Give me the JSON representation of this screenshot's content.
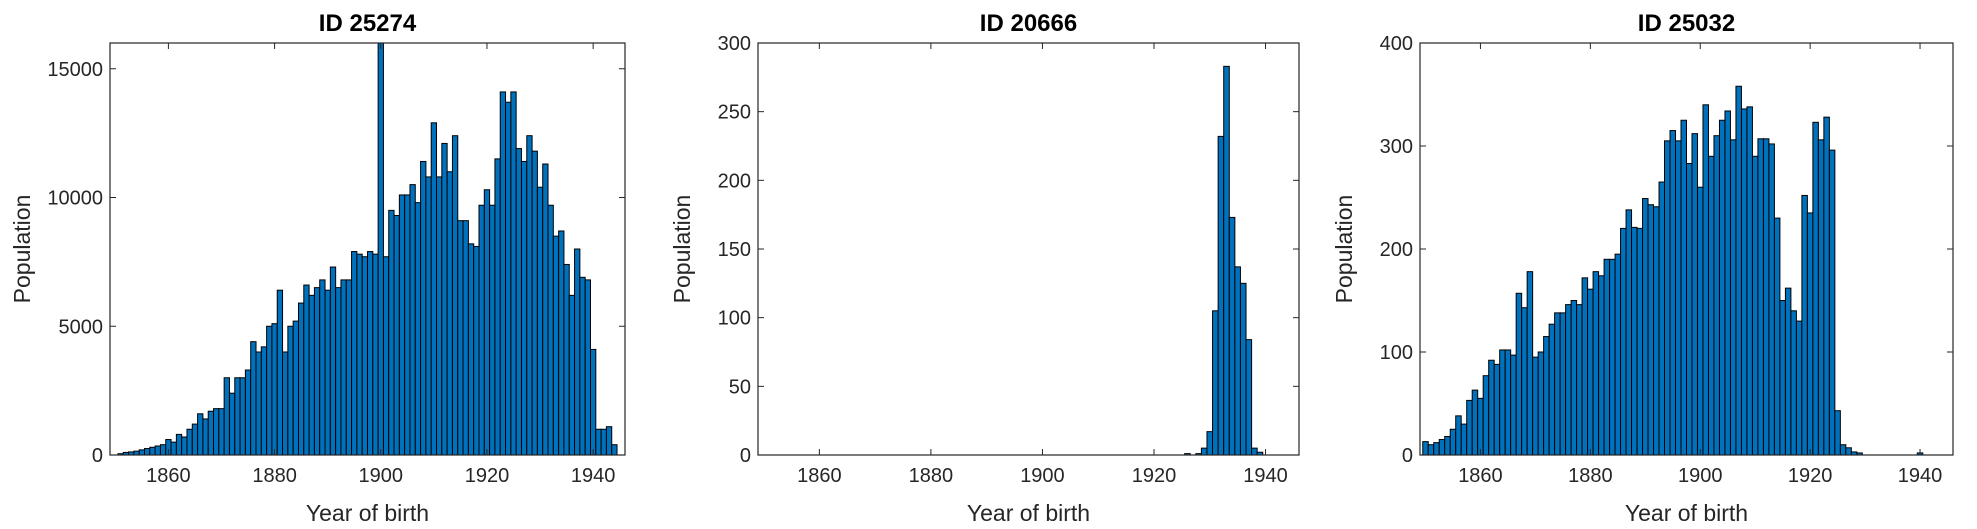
{
  "chart_data": [
    {
      "type": "bar",
      "title": "ID 25274",
      "xlabel": "Year of birth",
      "ylabel": "Population",
      "xlim": [
        1849,
        1946
      ],
      "ylim": [
        0,
        16000
      ],
      "xticks": [
        1860,
        1880,
        1900,
        1920,
        1940
      ],
      "yticks": [
        0,
        5000,
        10000,
        15000
      ],
      "bin_width": 1,
      "x": [
        1851,
        1852,
        1853,
        1854,
        1855,
        1856,
        1857,
        1858,
        1859,
        1860,
        1861,
        1862,
        1863,
        1864,
        1865,
        1866,
        1867,
        1868,
        1869,
        1870,
        1871,
        1872,
        1873,
        1874,
        1875,
        1876,
        1877,
        1878,
        1879,
        1880,
        1881,
        1882,
        1883,
        1884,
        1885,
        1886,
        1887,
        1888,
        1889,
        1890,
        1891,
        1892,
        1893,
        1894,
        1895,
        1896,
        1897,
        1898,
        1899,
        1900,
        1901,
        1902,
        1903,
        1904,
        1905,
        1906,
        1907,
        1908,
        1909,
        1910,
        1911,
        1912,
        1913,
        1914,
        1915,
        1916,
        1917,
        1918,
        1919,
        1920,
        1921,
        1922,
        1923,
        1924,
        1925,
        1926,
        1927,
        1928,
        1929,
        1930,
        1931,
        1932,
        1933,
        1934,
        1935,
        1936,
        1937,
        1938,
        1939,
        1940,
        1941,
        1942,
        1943,
        1944
      ],
      "values": [
        50,
        100,
        120,
        150,
        200,
        250,
        300,
        350,
        400,
        600,
        500,
        800,
        700,
        1000,
        1200,
        1600,
        1400,
        1700,
        1800,
        1800,
        3000,
        2400,
        3000,
        3000,
        3300,
        4400,
        4000,
        4200,
        5000,
        5100,
        6400,
        4000,
        5000,
        5200,
        5900,
        6600,
        6200,
        6500,
        6800,
        6400,
        7300,
        6500,
        6800,
        6800,
        7900,
        7800,
        7700,
        7900,
        7800,
        16000,
        7700,
        9500,
        9300,
        10100,
        10100,
        10500,
        9800,
        11400,
        10800,
        12900,
        10800,
        12100,
        11000,
        12400,
        9100,
        9100,
        8200,
        8100,
        9700,
        10300,
        9700,
        11500,
        14100,
        13700,
        14100,
        11900,
        11400,
        12400,
        11800,
        10400,
        11300,
        9700,
        8500,
        8700,
        7400,
        6200,
        8000,
        6900,
        6800,
        4100,
        1000,
        1000,
        1100,
        400
      ]
    },
    {
      "type": "bar",
      "title": "ID 20666",
      "xlabel": "Year of birth",
      "ylabel": "Population",
      "xlim": [
        1849,
        1946
      ],
      "ylim": [
        0,
        300
      ],
      "xticks": [
        1860,
        1880,
        1900,
        1920,
        1940
      ],
      "yticks": [
        0,
        50,
        100,
        150,
        200,
        250,
        300
      ],
      "bin_width": 1,
      "x": [
        1926,
        1927,
        1928,
        1929,
        1930,
        1931,
        1932,
        1933,
        1934,
        1935,
        1936,
        1937,
        1938,
        1939
      ],
      "values": [
        1,
        0,
        1,
        5,
        17,
        105,
        232,
        283,
        173,
        137,
        125,
        84,
        5,
        2
      ]
    },
    {
      "type": "bar",
      "title": "ID 25032",
      "xlabel": "Year of birth",
      "ylabel": "Population",
      "xlim": [
        1849,
        1946
      ],
      "ylim": [
        0,
        400
      ],
      "xticks": [
        1860,
        1880,
        1900,
        1920,
        1940
      ],
      "yticks": [
        0,
        100,
        200,
        300,
        400
      ],
      "bin_width": 1,
      "x": [
        1850,
        1851,
        1852,
        1853,
        1854,
        1855,
        1856,
        1857,
        1858,
        1859,
        1860,
        1861,
        1862,
        1863,
        1864,
        1865,
        1866,
        1867,
        1868,
        1869,
        1870,
        1871,
        1872,
        1873,
        1874,
        1875,
        1876,
        1877,
        1878,
        1879,
        1880,
        1881,
        1882,
        1883,
        1884,
        1885,
        1886,
        1887,
        1888,
        1889,
        1890,
        1891,
        1892,
        1893,
        1894,
        1895,
        1896,
        1897,
        1898,
        1899,
        1900,
        1901,
        1902,
        1903,
        1904,
        1905,
        1906,
        1907,
        1908,
        1909,
        1910,
        1911,
        1912,
        1913,
        1914,
        1915,
        1916,
        1917,
        1918,
        1919,
        1920,
        1921,
        1922,
        1923,
        1924,
        1925,
        1926,
        1927,
        1928,
        1929,
        1940
      ],
      "values": [
        13,
        10,
        12,
        15,
        18,
        25,
        38,
        30,
        53,
        63,
        55,
        77,
        92,
        88,
        102,
        102,
        97,
        157,
        143,
        178,
        95,
        100,
        115,
        127,
        138,
        138,
        146,
        150,
        146,
        172,
        161,
        178,
        174,
        190,
        190,
        195,
        220,
        238,
        221,
        220,
        249,
        243,
        241,
        265,
        305,
        315,
        305,
        325,
        283,
        312,
        260,
        340,
        290,
        310,
        325,
        334,
        306,
        358,
        336,
        338,
        290,
        307,
        307,
        302,
        230,
        150,
        162,
        140,
        130,
        252,
        235,
        323,
        306,
        328,
        296,
        43,
        10,
        7,
        3,
        2,
        2
      ]
    }
  ]
}
